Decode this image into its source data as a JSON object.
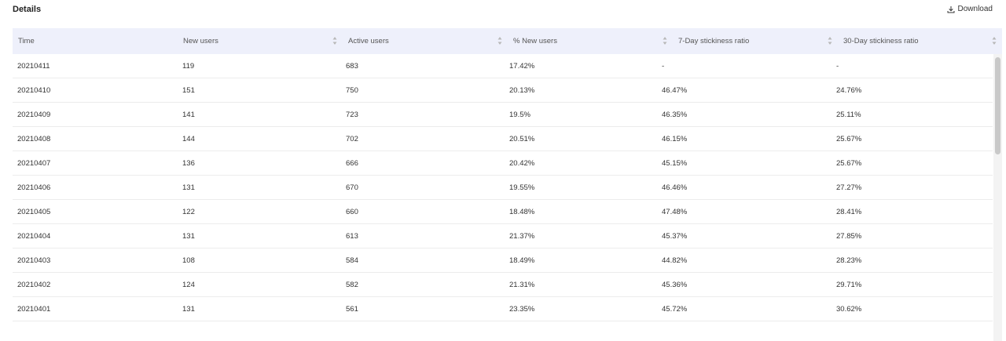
{
  "header": {
    "title": "Details",
    "download_label": "Download"
  },
  "table": {
    "columns": [
      "Time",
      "New users",
      "Active users",
      "% New users",
      "7-Day stickiness ratio",
      "30-Day stickiness ratio"
    ],
    "rows": [
      [
        "20210411",
        "119",
        "683",
        "17.42%",
        "-",
        "-"
      ],
      [
        "20210410",
        "151",
        "750",
        "20.13%",
        "46.47%",
        "24.76%"
      ],
      [
        "20210409",
        "141",
        "723",
        "19.5%",
        "46.35%",
        "25.11%"
      ],
      [
        "20210408",
        "144",
        "702",
        "20.51%",
        "46.15%",
        "25.67%"
      ],
      [
        "20210407",
        "136",
        "666",
        "20.42%",
        "45.15%",
        "25.67%"
      ],
      [
        "20210406",
        "131",
        "670",
        "19.55%",
        "46.46%",
        "27.27%"
      ],
      [
        "20210405",
        "122",
        "660",
        "18.48%",
        "47.48%",
        "28.41%"
      ],
      [
        "20210404",
        "131",
        "613",
        "21.37%",
        "45.37%",
        "27.85%"
      ],
      [
        "20210403",
        "108",
        "584",
        "18.49%",
        "44.82%",
        "28.23%"
      ],
      [
        "20210402",
        "124",
        "582",
        "21.31%",
        "45.36%",
        "29.71%"
      ],
      [
        "20210401",
        "131",
        "561",
        "23.35%",
        "45.72%",
        "30.62%"
      ]
    ]
  },
  "colors": {
    "header_bg": "#eef0fb",
    "row_border": "#ececec"
  },
  "icons": {
    "download": "download-icon",
    "sort": "sort-icon"
  }
}
